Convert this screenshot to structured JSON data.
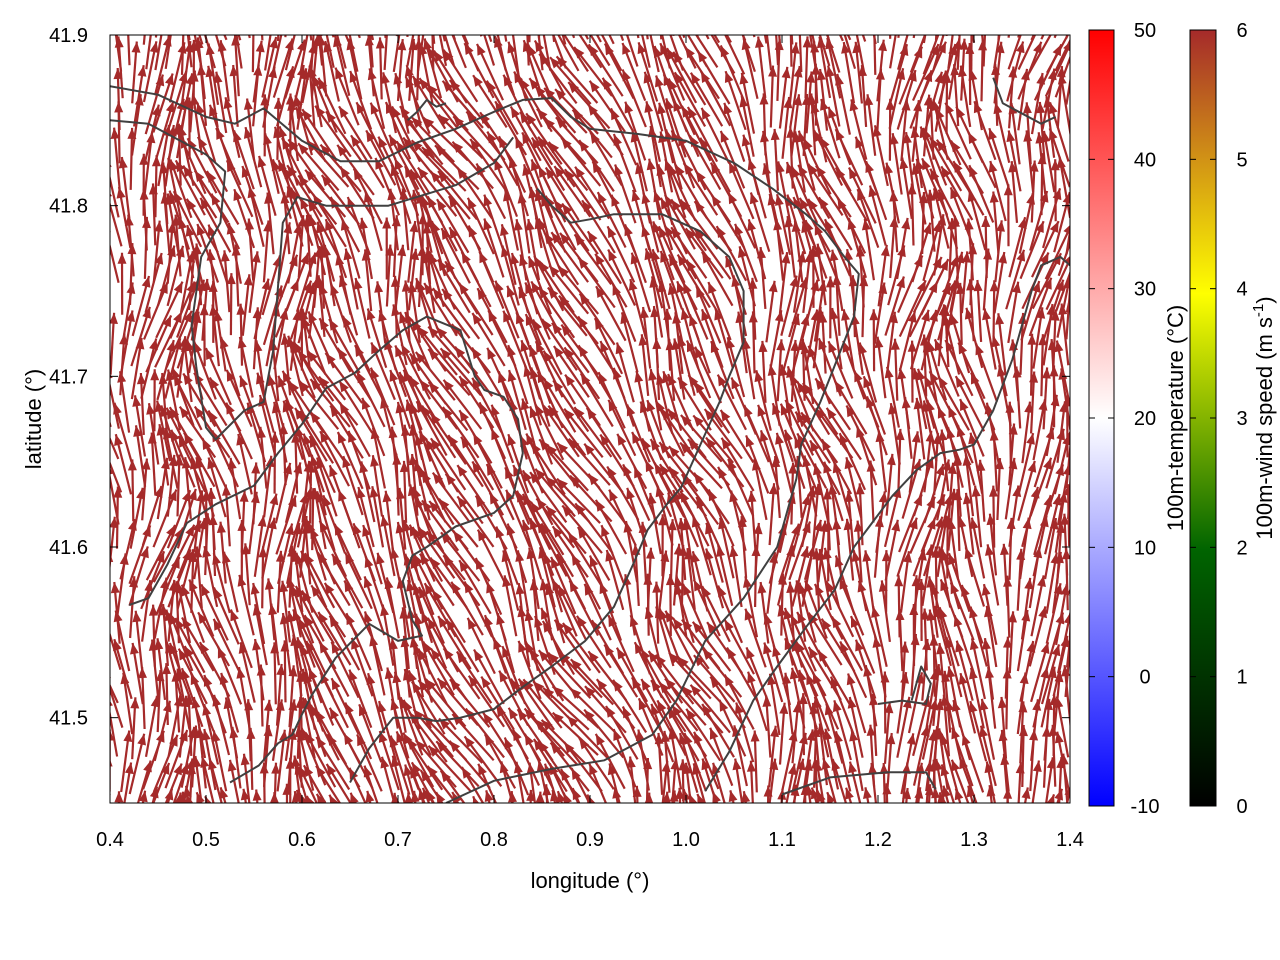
{
  "chart_data": {
    "type": "vector field",
    "xlabel": "longitude (°)",
    "ylabel": "latitude (°)",
    "xlim": [
      0.4,
      1.4
    ],
    "ylim": [
      41.45,
      41.9
    ],
    "x_ticks": [
      "0.4",
      "0.5",
      "0.6",
      "0.7",
      "0.8",
      "0.9",
      "1.0",
      "1.1",
      "1.2",
      "1.3",
      "1.4"
    ],
    "y_ticks": [
      "41.5",
      "41.6",
      "41.7",
      "41.8",
      "41.9"
    ],
    "grid": false,
    "arrow_color": "#a52a2a",
    "arrow_wind_speed_m_s": 6,
    "contour_color": "#404040",
    "colorbars": [
      {
        "label": "100m-temperature (°C)",
        "range": [
          -10,
          50
        ],
        "tick_labels": [
          "-10",
          "0",
          "10",
          "20",
          "30",
          "40",
          "50"
        ],
        "palette": [
          "#0000ff",
          "#ffffff",
          "#ff0000"
        ]
      },
      {
        "label_main": "100m-wind speed (m s",
        "label_sup": "-1",
        "label_close": ")",
        "range": [
          0,
          6
        ],
        "tick_labels": [
          "0",
          "1",
          "2",
          "3",
          "4",
          "5",
          "6"
        ],
        "palette": [
          "#000000",
          "#006400",
          "#ffff00",
          "#a52a2a"
        ]
      }
    ],
    "contours": [
      [
        [
          0.4,
          41.87
        ],
        [
          0.45,
          41.865
        ],
        [
          0.5,
          41.852
        ],
        [
          0.53,
          41.848
        ],
        [
          0.56,
          41.857
        ],
        [
          0.6,
          41.838
        ],
        [
          0.64,
          41.826
        ],
        [
          0.68,
          41.826
        ],
        [
          0.72,
          41.837
        ],
        [
          0.76,
          41.845
        ],
        [
          0.8,
          41.855
        ],
        [
          0.83,
          41.862
        ],
        [
          0.86,
          41.863
        ],
        [
          0.88,
          41.852
        ],
        [
          0.9,
          41.845
        ],
        [
          0.95,
          41.842
        ],
        [
          1.0,
          41.838
        ],
        [
          1.05,
          41.825
        ],
        [
          1.09,
          41.81
        ],
        [
          1.125,
          41.795
        ],
        [
          1.145,
          41.785
        ],
        [
          1.165,
          41.77
        ],
        [
          1.18,
          41.76
        ],
        [
          1.175,
          41.735
        ],
        [
          1.14,
          41.685
        ],
        [
          1.12,
          41.66
        ],
        [
          1.115,
          41.64
        ],
        [
          1.095,
          41.6
        ],
        [
          1.06,
          41.57
        ],
        [
          1.02,
          41.545
        ],
        [
          0.99,
          41.51
        ],
        [
          0.965,
          41.49
        ],
        [
          0.915,
          41.475
        ],
        [
          0.86,
          41.47
        ],
        [
          0.8,
          41.463
        ],
        [
          0.75,
          41.45
        ]
      ],
      [
        [
          0.4,
          41.85
        ],
        [
          0.44,
          41.848
        ],
        [
          0.5,
          41.83
        ],
        [
          0.52,
          41.82
        ],
        [
          0.515,
          41.79
        ],
        [
          0.495,
          41.77
        ],
        [
          0.485,
          41.73
        ],
        [
          0.49,
          41.705
        ],
        [
          0.5,
          41.67
        ],
        [
          0.51,
          41.663
        ],
        [
          0.54,
          41.68
        ],
        [
          0.56,
          41.685
        ],
        [
          0.57,
          41.715
        ],
        [
          0.58,
          41.79
        ],
        [
          0.595,
          41.805
        ],
        [
          0.625,
          41.8
        ],
        [
          0.69,
          41.8
        ],
        [
          0.76,
          41.812
        ],
        [
          0.8,
          41.825
        ],
        [
          0.82,
          41.84
        ]
      ],
      [
        [
          0.42,
          41.566
        ],
        [
          0.44,
          41.57
        ],
        [
          0.46,
          41.59
        ],
        [
          0.48,
          41.614
        ],
        [
          0.51,
          41.625
        ],
        [
          0.55,
          41.636
        ],
        [
          0.575,
          41.655
        ],
        [
          0.6,
          41.672
        ],
        [
          0.625,
          41.693
        ],
        [
          0.655,
          41.702
        ],
        [
          0.68,
          41.715
        ],
        [
          0.705,
          41.727
        ],
        [
          0.73,
          41.735
        ],
        [
          0.765,
          41.727
        ],
        [
          0.78,
          41.7
        ],
        [
          0.79,
          41.692
        ],
        [
          0.81,
          41.688
        ],
        [
          0.825,
          41.675
        ],
        [
          0.83,
          41.655
        ],
        [
          0.82,
          41.63
        ],
        [
          0.8,
          41.62
        ],
        [
          0.76,
          41.612
        ],
        [
          0.73,
          41.6
        ],
        [
          0.715,
          41.595
        ],
        [
          0.705,
          41.58
        ],
        [
          0.715,
          41.557
        ],
        [
          0.725,
          41.548
        ],
        [
          0.7,
          41.545
        ],
        [
          0.67,
          41.555
        ],
        [
          0.635,
          41.535
        ],
        [
          0.61,
          41.513
        ],
        [
          0.6,
          41.502
        ],
        [
          0.59,
          41.49
        ],
        [
          0.575,
          41.485
        ],
        [
          0.555,
          41.472
        ],
        [
          0.525,
          41.462
        ]
      ],
      [
        [
          0.65,
          41.462
        ],
        [
          0.67,
          41.482
        ],
        [
          0.695,
          41.5
        ],
        [
          0.72,
          41.5
        ],
        [
          0.74,
          41.498
        ],
        [
          0.765,
          41.5
        ],
        [
          0.8,
          41.505
        ],
        [
          0.83,
          41.518
        ],
        [
          0.86,
          41.53
        ],
        [
          0.895,
          41.545
        ],
        [
          0.925,
          41.565
        ],
        [
          0.945,
          41.59
        ],
        [
          0.96,
          41.61
        ],
        [
          0.98,
          41.625
        ],
        [
          0.995,
          41.635
        ],
        [
          1.015,
          41.66
        ],
        [
          1.035,
          41.685
        ],
        [
          1.045,
          41.7
        ],
        [
          1.06,
          41.72
        ],
        [
          1.06,
          41.75
        ],
        [
          1.045,
          41.77
        ],
        [
          1.015,
          41.785
        ],
        [
          0.975,
          41.795
        ],
        [
          0.925,
          41.795
        ],
        [
          0.9,
          41.792
        ],
        [
          0.88,
          41.79
        ],
        [
          0.86,
          41.8
        ],
        [
          0.845,
          41.81
        ]
      ],
      [
        [
          1.02,
          41.457
        ],
        [
          1.045,
          41.48
        ],
        [
          1.07,
          41.51
        ],
        [
          1.095,
          41.53
        ],
        [
          1.125,
          41.553
        ],
        [
          1.155,
          41.575
        ],
        [
          1.175,
          41.6
        ],
        [
          1.195,
          41.615
        ],
        [
          1.215,
          41.63
        ],
        [
          1.24,
          41.645
        ],
        [
          1.265,
          41.655
        ],
        [
          1.285,
          41.657
        ],
        [
          1.3,
          41.66
        ],
        [
          1.32,
          41.68
        ],
        [
          1.34,
          41.71
        ],
        [
          1.35,
          41.73
        ],
        [
          1.36,
          41.75
        ],
        [
          1.37,
          41.765
        ],
        [
          1.39,
          41.77
        ],
        [
          1.4,
          41.765
        ]
      ],
      [
        [
          1.1,
          41.455
        ],
        [
          1.15,
          41.465
        ],
        [
          1.21,
          41.468
        ],
        [
          1.25,
          41.468
        ],
        [
          1.26,
          41.458
        ]
      ],
      [
        [
          1.32,
          41.875
        ],
        [
          1.33,
          41.86
        ],
        [
          1.37,
          41.848
        ],
        [
          1.385,
          41.852
        ]
      ],
      [
        [
          0.71,
          41.85
        ],
        [
          0.72,
          41.855
        ],
        [
          0.73,
          41.862
        ],
        [
          0.74,
          41.858
        ],
        [
          0.75,
          41.86
        ]
      ],
      [
        [
          1.2,
          41.508
        ],
        [
          1.225,
          41.51
        ],
        [
          1.25,
          41.508
        ],
        [
          1.255,
          41.52
        ],
        [
          1.245,
          41.53
        ],
        [
          1.235,
          41.51
        ]
      ]
    ]
  }
}
